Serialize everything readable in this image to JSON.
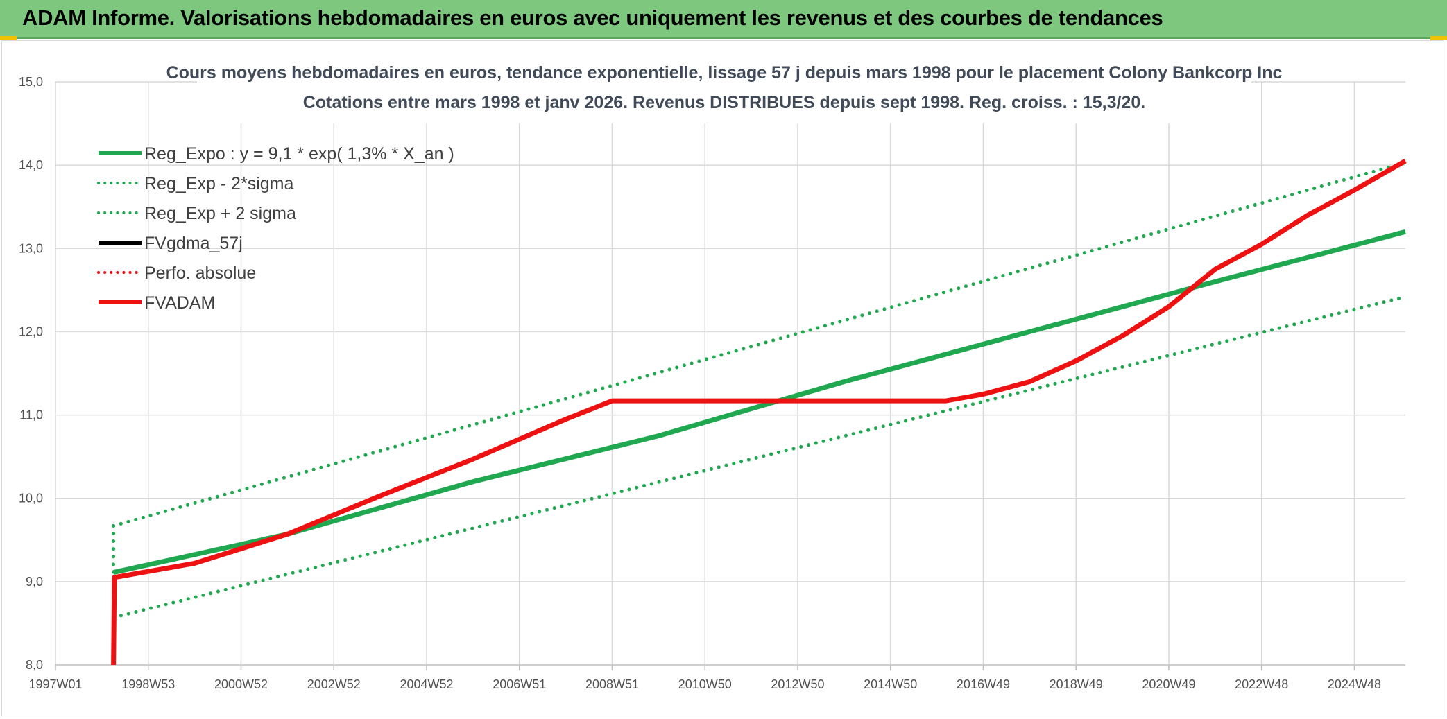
{
  "banner": {
    "title": "ADAM Informe. Valorisations hebdomadaires en euros avec uniquement les revenus et des courbes de tendances"
  },
  "colors": {
    "banner_bg": "#7dc87e",
    "reg_green": "#1fa84f",
    "fvadam_red": "#ee1111",
    "black": "#000000"
  },
  "chart_data": {
    "type": "line",
    "title": "Cours moyens hebdomadaires en euros, tendance exponentielle, lissage 57 j depuis mars 1998 pour le placement Colony Bankcorp Inc",
    "subtitle": "Cotations entre mars 1998 et janv 2026. Revenus DISTRIBUES depuis sept 1998. Reg. croiss. : 15,3/20.",
    "xlabel": "",
    "ylabel": "",
    "x_tick_labels": [
      "1997W01",
      "1998W53",
      "2000W52",
      "2002W52",
      "2004W52",
      "2006W51",
      "2008W51",
      "2010W50",
      "2012W50",
      "2014W50",
      "2016W49",
      "2018W49",
      "2020W49",
      "2022W48",
      "2024W48"
    ],
    "x_range": [
      1997.0,
      2026.1
    ],
    "ylim": [
      8.0,
      15.0
    ],
    "y_ticks": [
      "8,0",
      "9,0",
      "10,0",
      "11,0",
      "12,0",
      "13,0",
      "14,0",
      "15,0"
    ],
    "grid": true,
    "legend_position": "top-left",
    "series": [
      {
        "name": "Reg_Expo : y = 9,1 * exp( 1,3% *  X_an )",
        "style": "solid",
        "color": "#1fa84f",
        "x": [
          1998.25,
          2002.0,
          2006.0,
          2010.0,
          2014.0,
          2018.0,
          2022.0,
          2026.1
        ],
        "y": [
          9.11,
          9.57,
          10.2,
          10.75,
          11.4,
          12.0,
          12.6,
          13.2
        ]
      },
      {
        "name": "Reg_Exp - 2*sigma",
        "style": "dotted",
        "color": "#1fa84f",
        "x": [
          1998.25,
          2026.1
        ],
        "y": [
          8.57,
          12.42
        ]
      },
      {
        "name": "Reg_Exp + 2 sigma",
        "style": "dotted",
        "color": "#1fa84f",
        "x": [
          1998.25,
          2026.1
        ],
        "y": [
          9.67,
          14.03
        ]
      },
      {
        "name": "FVgdma_57j",
        "style": "solid",
        "color": "#000000",
        "x": [],
        "y": []
      },
      {
        "name": "Perfo. absolue",
        "style": "dotted",
        "color": "#ee1111",
        "x": [],
        "y": []
      },
      {
        "name": "FVADAM",
        "style": "solid",
        "color": "#ee1111",
        "x": [
          1998.25,
          1998.25,
          1998.27,
          2000.0,
          2002.0,
          2004.0,
          2006.0,
          2008.0,
          2009.0,
          2011.0,
          2013.0,
          2015.0,
          2016.2,
          2017.0,
          2018.0,
          2019.0,
          2020.0,
          2021.0,
          2022.0,
          2023.0,
          2024.0,
          2025.0,
          2026.1
        ],
        "y": [
          8.0,
          8.0,
          9.05,
          9.22,
          9.57,
          10.03,
          10.47,
          10.95,
          11.17,
          11.17,
          11.17,
          11.17,
          11.17,
          11.25,
          11.4,
          11.65,
          11.95,
          12.3,
          12.75,
          13.05,
          13.4,
          13.7,
          14.05
        ]
      }
    ]
  }
}
